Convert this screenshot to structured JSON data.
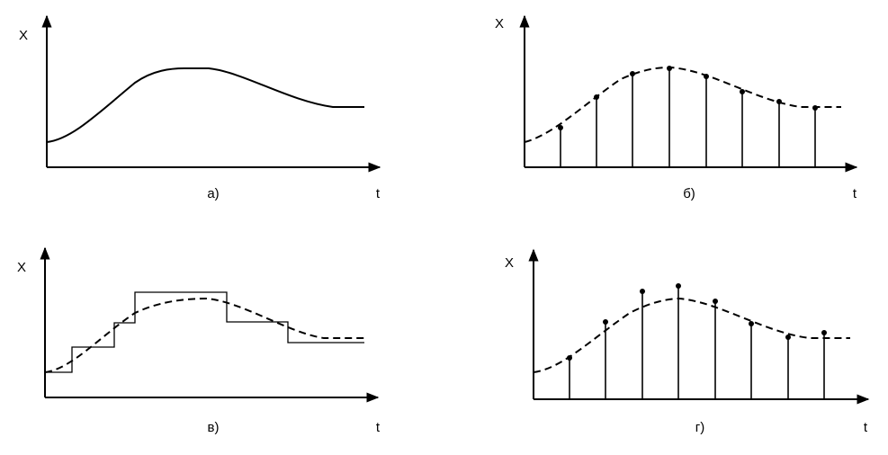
{
  "panels": [
    {
      "label": "а)",
      "y_label": "X",
      "x_label": "t"
    },
    {
      "label": "б)",
      "y_label": "X",
      "x_label": "t"
    },
    {
      "label": "в)",
      "y_label": "X",
      "x_label": "t"
    },
    {
      "label": "г)",
      "y_label": "X",
      "x_label": "t"
    }
  ]
}
